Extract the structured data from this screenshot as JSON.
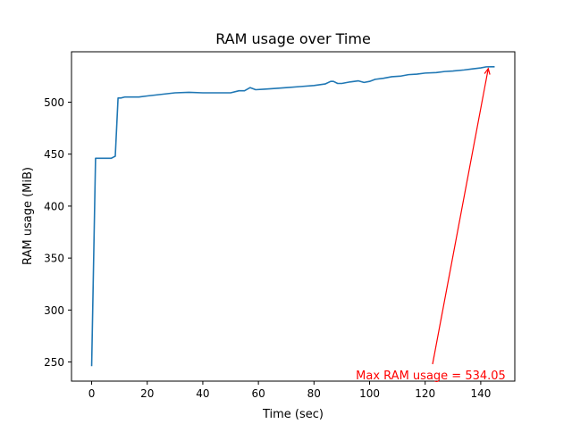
{
  "chart_data": {
    "type": "line",
    "title": "RAM usage over Time",
    "xlabel": "Time (sec)",
    "ylabel": "RAM usage (MiB)",
    "xlim": [
      -7.25,
      152.25
    ],
    "ylim": [
      231.6,
      548.5
    ],
    "xticks": [
      0,
      20,
      40,
      60,
      80,
      100,
      120,
      140
    ],
    "yticks": [
      250,
      300,
      350,
      400,
      450,
      500
    ],
    "grid": false,
    "line_color": "#1f77b4",
    "annotation_color": "#ff0000",
    "series": [
      {
        "x": [
          0,
          1.4,
          2,
          3,
          5,
          7,
          8.5,
          9.5,
          10.5,
          12,
          14,
          17,
          20,
          25,
          30,
          35,
          40,
          45,
          50,
          53,
          55,
          57,
          59,
          62,
          65,
          70,
          75,
          80,
          84,
          86,
          87,
          88.5,
          90,
          93,
          96,
          98,
          100,
          102,
          105,
          108,
          111,
          114,
          117,
          120,
          124,
          127,
          130,
          134,
          137,
          140,
          142,
          144,
          145
        ],
        "y": [
          246,
          446,
          446,
          446,
          446,
          446,
          448,
          504,
          504,
          505,
          505,
          505,
          506,
          507.5,
          509,
          509.5,
          509,
          509,
          509,
          511,
          511,
          514,
          512,
          512.5,
          513,
          514,
          515,
          516,
          517.5,
          520,
          520,
          518,
          518,
          519.5,
          520.5,
          519,
          520,
          522,
          523,
          524.5,
          525,
          526.5,
          527,
          528,
          528.5,
          529.5,
          530,
          531,
          532,
          533,
          534,
          534.05,
          534.05
        ]
      }
    ],
    "annotation": {
      "text": "Max RAM usage = 534.05",
      "point": [
        142.7,
        534.05
      ]
    }
  }
}
